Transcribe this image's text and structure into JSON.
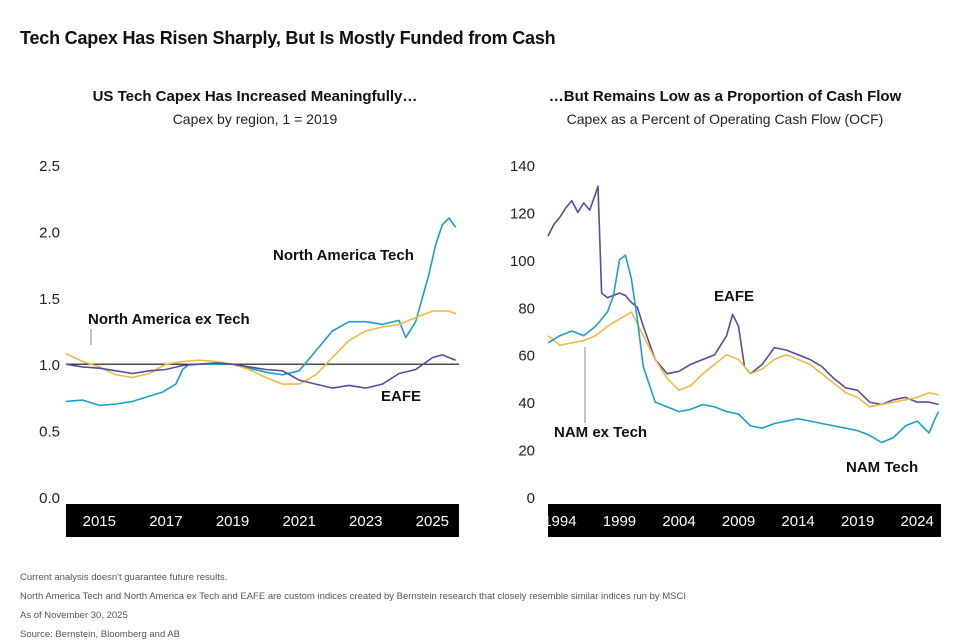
{
  "title": "Tech Capex Has Risen Sharply, But Is Mostly Funded from Cash",
  "colors": {
    "north_america_tech": "#1a9fc9",
    "north_america_ex_tech": "#f4b942",
    "eafe": "#5b4a9e",
    "axis_band": "#000000"
  },
  "chart_data": [
    {
      "type": "line",
      "title": "US Tech Capex Has Increased Meaningfully…",
      "subtitle": "Capex by region, 1 = 2019",
      "xlabel": "",
      "ylabel": "",
      "xlim": [
        2014.0,
        2025.8
      ],
      "ylim": [
        0.0,
        2.5
      ],
      "xticks": [
        "2015",
        "2017",
        "2019",
        "2021",
        "2023",
        "2025"
      ],
      "yticks": [
        "0.0",
        "0.5",
        "1.0",
        "1.5",
        "2.0",
        "2.5"
      ],
      "reference_line": 1.0,
      "grid": false,
      "labels": [
        "North America Tech",
        "North America ex Tech",
        "EAFE"
      ],
      "series": [
        {
          "name": "North America Tech",
          "color": "#1a9fc9",
          "x": [
            2014.0,
            2014.5,
            2015.0,
            2015.5,
            2016.0,
            2016.5,
            2016.9,
            2017.3,
            2017.5,
            2017.7,
            2018.0,
            2018.5,
            2019.0,
            2019.5,
            2020.0,
            2020.5,
            2021.0,
            2021.5,
            2022.0,
            2022.5,
            2023.0,
            2023.5,
            2024.0,
            2024.2,
            2024.5,
            2024.7,
            2024.9,
            2025.1,
            2025.3,
            2025.5,
            2025.7
          ],
          "y": [
            0.72,
            0.73,
            0.69,
            0.7,
            0.72,
            0.76,
            0.79,
            0.85,
            0.96,
            1.0,
            1.0,
            1.0,
            1.0,
            0.97,
            0.94,
            0.92,
            0.95,
            1.1,
            1.25,
            1.32,
            1.32,
            1.3,
            1.33,
            1.2,
            1.32,
            1.5,
            1.68,
            1.9,
            2.05,
            2.1,
            2.03
          ]
        },
        {
          "name": "North America ex Tech",
          "color": "#f4b942",
          "x": [
            2014.0,
            2014.5,
            2015.0,
            2015.5,
            2016.0,
            2016.5,
            2017.0,
            2017.5,
            2018.0,
            2018.5,
            2019.0,
            2019.5,
            2020.0,
            2020.5,
            2021.0,
            2021.5,
            2022.0,
            2022.5,
            2023.0,
            2023.5,
            2024.0,
            2024.5,
            2025.0,
            2025.5,
            2025.7
          ],
          "y": [
            1.08,
            1.02,
            0.98,
            0.92,
            0.9,
            0.93,
            1.0,
            1.02,
            1.03,
            1.02,
            1.0,
            0.96,
            0.9,
            0.85,
            0.85,
            0.92,
            1.05,
            1.18,
            1.25,
            1.28,
            1.3,
            1.35,
            1.4,
            1.4,
            1.38
          ]
        },
        {
          "name": "EAFE",
          "color": "#5b4a9e",
          "x": [
            2014.0,
            2014.5,
            2015.0,
            2015.5,
            2016.0,
            2016.5,
            2017.0,
            2017.5,
            2018.0,
            2018.5,
            2019.0,
            2019.5,
            2020.0,
            2020.5,
            2021.0,
            2021.5,
            2022.0,
            2022.5,
            2023.0,
            2023.5,
            2024.0,
            2024.5,
            2025.0,
            2025.3,
            2025.7
          ],
          "y": [
            1.0,
            0.98,
            0.97,
            0.95,
            0.93,
            0.95,
            0.96,
            0.99,
            1.0,
            1.01,
            1.0,
            0.98,
            0.96,
            0.95,
            0.88,
            0.85,
            0.82,
            0.84,
            0.82,
            0.85,
            0.93,
            0.96,
            1.05,
            1.07,
            1.03
          ]
        }
      ]
    },
    {
      "type": "line",
      "title": "…But Remains Low as a Proportion of Cash Flow",
      "subtitle": "Capex as a Percent of Operating Cash Flow (OCF)",
      "xlabel": "",
      "ylabel": "",
      "xlim": [
        1993.0,
        2026.0
      ],
      "ylim": [
        0,
        140
      ],
      "xticks": [
        "1994",
        "1999",
        "2004",
        "2009",
        "2014",
        "2019",
        "2024"
      ],
      "yticks": [
        "0",
        "20",
        "40",
        "60",
        "80",
        "100",
        "120",
        "140"
      ],
      "grid": false,
      "labels": [
        "EAFE",
        "NAM ex Tech",
        "NAM Tech"
      ],
      "series": [
        {
          "name": "EAFE",
          "color": "#5b4a9e",
          "x": [
            1993.0,
            1993.5,
            1994.0,
            1994.5,
            1995.0,
            1995.5,
            1996.0,
            1996.5,
            1997.0,
            1997.2,
            1997.5,
            1998.0,
            1998.5,
            1999.0,
            1999.5,
            2000.0,
            2000.5,
            2001.0,
            2002.0,
            2003.0,
            2004.0,
            2005.0,
            2006.0,
            2007.0,
            2008.0,
            2008.5,
            2009.0,
            2009.5,
            2010.0,
            2011.0,
            2012.0,
            2013.0,
            2014.0,
            2015.0,
            2016.0,
            2017.0,
            2018.0,
            2019.0,
            2020.0,
            2021.0,
            2022.0,
            2023.0,
            2024.0,
            2025.0,
            2025.8
          ],
          "y": [
            110,
            115,
            118,
            122,
            125,
            120,
            124,
            121,
            128,
            131,
            86,
            84,
            85,
            86,
            85,
            82,
            80,
            72,
            58,
            52,
            53,
            56,
            58,
            60,
            68,
            77,
            72,
            55,
            52,
            56,
            63,
            62,
            60,
            58,
            55,
            50,
            46,
            45,
            40,
            39,
            41,
            42,
            40,
            40,
            39
          ]
        },
        {
          "name": "NAM ex Tech",
          "color": "#f4b942",
          "x": [
            1993.0,
            1994.0,
            1995.0,
            1996.0,
            1997.0,
            1998.0,
            1999.0,
            2000.0,
            2001.0,
            2002.0,
            2003.0,
            2004.0,
            2005.0,
            2006.0,
            2007.0,
            2008.0,
            2009.0,
            2010.0,
            2011.0,
            2012.0,
            2013.0,
            2014.0,
            2015.0,
            2016.0,
            2017.0,
            2018.0,
            2019.0,
            2020.0,
            2021.0,
            2022.0,
            2023.0,
            2024.0,
            2025.0,
            2025.8
          ],
          "y": [
            68,
            64,
            65,
            66,
            68,
            72,
            75,
            78,
            68,
            58,
            50,
            45,
            47,
            52,
            56,
            60,
            58,
            52,
            54,
            58,
            60,
            58,
            56,
            52,
            48,
            44,
            42,
            38,
            39,
            40,
            41,
            42,
            44,
            43
          ]
        },
        {
          "name": "NAM Tech",
          "color": "#1a9fc9",
          "x": [
            1993.0,
            1994.0,
            1995.0,
            1996.0,
            1997.0,
            1998.0,
            1998.5,
            1999.0,
            1999.5,
            2000.0,
            2000.5,
            2001.0,
            2002.0,
            2003.0,
            2004.0,
            2005.0,
            2006.0,
            2007.0,
            2008.0,
            2009.0,
            2010.0,
            2011.0,
            2012.0,
            2013.0,
            2014.0,
            2015.0,
            2016.0,
            2017.0,
            2018.0,
            2019.0,
            2020.0,
            2021.0,
            2022.0,
            2023.0,
            2024.0,
            2025.0,
            2025.5,
            2025.8
          ],
          "y": [
            65,
            68,
            70,
            68,
            72,
            78,
            85,
            100,
            102,
            92,
            75,
            55,
            40,
            38,
            36,
            37,
            39,
            38,
            36,
            35,
            30,
            29,
            31,
            32,
            33,
            32,
            31,
            30,
            29,
            28,
            26,
            23,
            25,
            30,
            32,
            27,
            33,
            36
          ]
        }
      ]
    }
  ],
  "annotations": {
    "left": {
      "north_america_tech": "North America Tech",
      "north_america_ex_tech": "North America ex Tech",
      "eafe": "EAFE"
    },
    "right": {
      "eafe": "EAFE",
      "nam_ex_tech": "NAM ex Tech",
      "nam_tech": "NAM Tech"
    }
  },
  "footnotes": [
    "Current analysis doesn't guarantee future results.",
    "North America Tech and North America ex Tech and EAFE are custom indices created by Bernstein research that closely resemble similar indices run by MSCI",
    "As of November 30, 2025",
    "Source: Bernstein, Bloomberg and AB"
  ]
}
